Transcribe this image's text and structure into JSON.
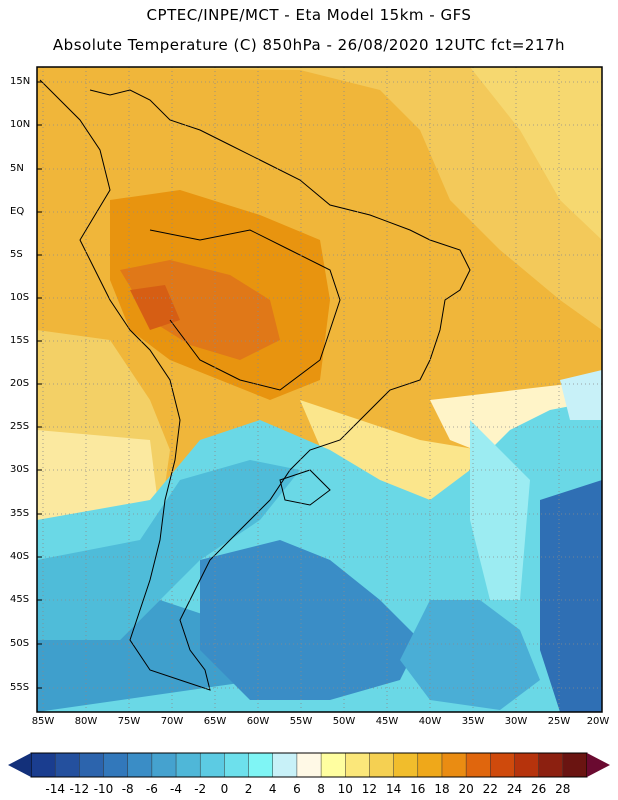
{
  "header": {
    "line1": "CPTEC/INPE/MCT -  Eta Model 15km - GFS",
    "line2": "Absolute Temperature (C) 850hPa - 26/08/2020 12UTC fct=217h"
  },
  "map": {
    "lat_labels": [
      "15N",
      "10N",
      "5N",
      "EQ",
      "5S",
      "10S",
      "15S",
      "20S",
      "25S",
      "30S",
      "35S",
      "40S",
      "45S",
      "50S",
      "55S"
    ],
    "lon_labels": [
      "85W",
      "80W",
      "75W",
      "70W",
      "65W",
      "60W",
      "55W",
      "50W",
      "45W",
      "40W",
      "35W",
      "30W",
      "25W",
      "20W"
    ]
  },
  "colorbar": {
    "labels": [
      "-14",
      "-12",
      "-10",
      "-8",
      "-6",
      "-4",
      "-2",
      "0",
      "2",
      "4",
      "6",
      "8",
      "10",
      "12",
      "14",
      "16",
      "18",
      "20",
      "22",
      "24",
      "26",
      "28"
    ],
    "colors": [
      "#1a3d8f",
      "#24509e",
      "#2c64ad",
      "#3278bb",
      "#3a8dc6",
      "#45a2cf",
      "#4fb7d8",
      "#5ccbe3",
      "#6de0ec",
      "#7ff5f5",
      "#c8f1f8",
      "#fff9e6",
      "#fffea0",
      "#fbe77a",
      "#f5d052",
      "#f1bd2c",
      "#efa81a",
      "#ea8c12",
      "#e0660d",
      "#cf4a0c",
      "#b6330c",
      "#8c2010",
      "#6a1411"
    ],
    "left_arrow_color": "#13307a",
    "right_arrow_color": "#6a0a30"
  }
}
